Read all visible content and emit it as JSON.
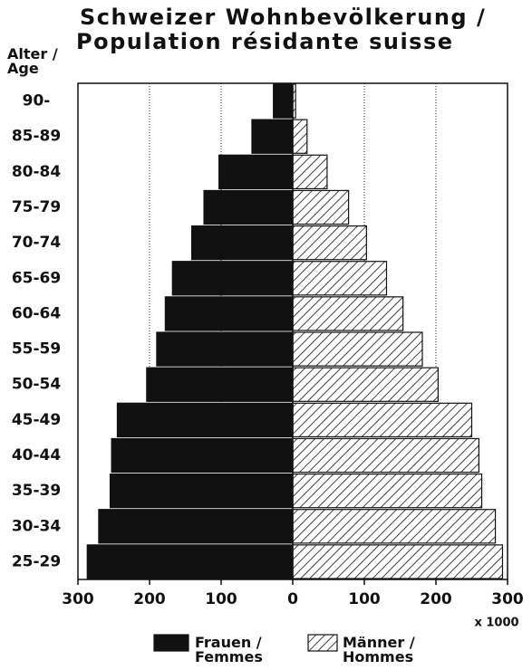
{
  "chart_data": {
    "type": "pyramid",
    "title": [
      "Schweizer Wohnbevölkerung /",
      "Population résidante suisse"
    ],
    "y_label": "Alter / Age",
    "x_unit": "x 1000",
    "categories": [
      "25-29",
      "30-34",
      "35-39",
      "40-44",
      "45-49",
      "50-54",
      "55-59",
      "60-64",
      "65-69",
      "70-74",
      "75-79",
      "80-84",
      "85-89",
      "90-"
    ],
    "series": [
      {
        "name": "Frauen / Femmes",
        "color": "#111111",
        "values": [
          287,
          271,
          255,
          253,
          245,
          204,
          190,
          178,
          168,
          141,
          124,
          103,
          57,
          27
        ]
      },
      {
        "name": "Männer / Hommes",
        "color": "#111111",
        "values": [
          293,
          283,
          264,
          260,
          250,
          203,
          181,
          154,
          131,
          103,
          78,
          48,
          20,
          4
        ]
      }
    ],
    "xlim": [
      -300,
      300
    ],
    "xticks": [
      {
        "value": -300,
        "label": "300"
      },
      {
        "value": -200,
        "label": "200"
      },
      {
        "value": -100,
        "label": "100"
      },
      0,
      100,
      200,
      300
    ],
    "grid": true
  }
}
